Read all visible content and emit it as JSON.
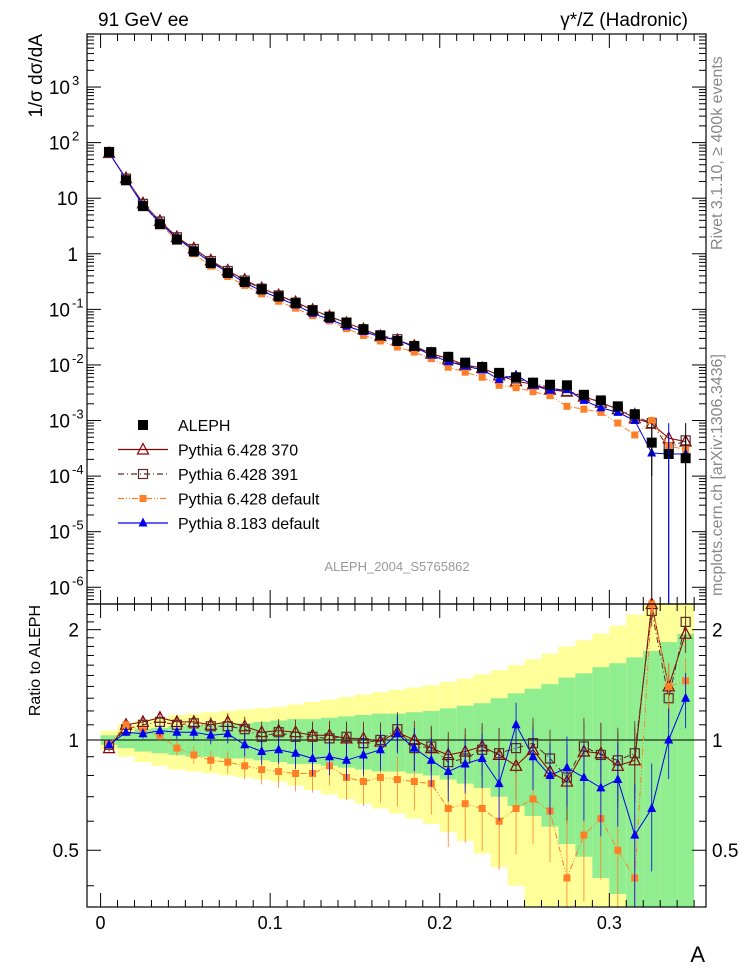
{
  "header": {
    "left": "91 GeV ee",
    "right": "γ*/Z (Hadronic)"
  },
  "side": {
    "rivet": "Rivet 3.1.10, ≥ 400k events",
    "mcplots": "mcplots.cern.ch [arXiv:1306.3436]"
  },
  "watermark": "ALEPH_2004_S5765862",
  "colors": {
    "data": "#000000",
    "p370": "#8b0000",
    "p391": "#5a2a2a",
    "pdef": "#ff7f27",
    "p8": "#0000ee",
    "band_inner": "#90ee90",
    "band_outer": "#ffff99"
  },
  "chart_data": [
    {
      "type": "scatter",
      "panel": "main",
      "ylabel": "1/σ dσ/dA",
      "yscale": "log",
      "ylim": [
        5e-07,
        9000
      ],
      "xlim": [
        -0.008,
        0.357
      ],
      "y_ticks": [
        "10^-6",
        "10^-5",
        "10^-4",
        "10^-3",
        "10^-2",
        "10^-1",
        "1",
        "10",
        "10^2",
        "10^3"
      ],
      "x": [
        0.005,
        0.015,
        0.025,
        0.035,
        0.045,
        0.055,
        0.065,
        0.075,
        0.085,
        0.095,
        0.105,
        0.115,
        0.125,
        0.135,
        0.145,
        0.155,
        0.165,
        0.175,
        0.185,
        0.195,
        0.205,
        0.215,
        0.225,
        0.235,
        0.245,
        0.255,
        0.265,
        0.275,
        0.285,
        0.295,
        0.305,
        0.315,
        0.325,
        0.335,
        0.345
      ],
      "data": [
        68,
        21,
        7.2,
        3.4,
        1.8,
        1.1,
        0.68,
        0.45,
        0.31,
        0.23,
        0.17,
        0.13,
        0.095,
        0.073,
        0.057,
        0.044,
        0.034,
        0.027,
        0.022,
        0.017,
        0.014,
        0.011,
        0.0092,
        0.0072,
        0.006,
        0.0048,
        0.0044,
        0.0043,
        0.0029,
        0.0023,
        0.0018,
        0.0013,
        0.0004,
        0.00025,
        0.00021
      ],
      "data_err_hi": [
        4,
        1,
        0.3,
        0.12,
        0.06,
        0.04,
        0.025,
        0.015,
        0.01,
        0.008,
        0.006,
        0.005,
        0.004,
        0.003,
        0.002,
        0.0018,
        0.0015,
        0.0012,
        0.001,
        0.0009,
        0.0008,
        0.0007,
        0.0006,
        0.0006,
        0.0006,
        0.0005,
        0.0005,
        0.0005,
        0.0004,
        0.0004,
        0.0004,
        0.0004,
        0.0003,
        0.0003,
        0.0003
      ],
      "series": [
        {
          "name": "ALEPH",
          "key": "data",
          "marker": "square-filled",
          "color": "#000000"
        },
        {
          "name": "Pythia 6.428 370",
          "key": "p370",
          "marker": "triangle-open",
          "color": "#8b0000",
          "dash": "solid",
          "values": [
            65,
            23,
            8.1,
            3.9,
            2.0,
            1.25,
            0.76,
            0.5,
            0.34,
            0.24,
            0.18,
            0.135,
            0.098,
            0.075,
            0.057,
            0.044,
            0.033,
            0.028,
            0.022,
            0.016,
            0.013,
            0.01,
            0.0088,
            0.0065,
            0.0051,
            0.0045,
            0.0036,
            0.0033,
            0.0027,
            0.0021,
            0.0016,
            0.0011,
            0.00088,
            0.00048,
            0.00042
          ]
        },
        {
          "name": "Pythia 6.428 391",
          "key": "p391",
          "marker": "square-open",
          "color": "#5a2a2a",
          "dash": "dashdot",
          "values": [
            66,
            22.5,
            7.9,
            3.8,
            1.98,
            1.22,
            0.74,
            0.49,
            0.33,
            0.235,
            0.178,
            0.132,
            0.097,
            0.074,
            0.058,
            0.043,
            0.034,
            0.029,
            0.021,
            0.016,
            0.012,
            0.0098,
            0.0087,
            0.0066,
            0.0057,
            0.0047,
            0.0039,
            0.0034,
            0.0028,
            0.0021,
            0.0016,
            0.0012,
            0.0009,
            0.00032,
            0.00044
          ]
        },
        {
          "name": "Pythia 6.428 default",
          "key": "pdef",
          "marker": "square-filled-small",
          "color": "#ff7f27",
          "dash": "dashdotdot",
          "values": [
            66,
            23,
            7.6,
            3.5,
            1.7,
            1.0,
            0.6,
            0.39,
            0.27,
            0.19,
            0.14,
            0.105,
            0.077,
            0.062,
            0.045,
            0.034,
            0.027,
            0.021,
            0.017,
            0.013,
            0.0091,
            0.0074,
            0.006,
            0.0043,
            0.0039,
            0.0033,
            0.0028,
            0.0018,
            0.0016,
            0.0014,
            0.0009,
            0.00055,
            0.001,
            0.00035,
            0.0003
          ]
        },
        {
          "name": "Pythia 8.183 default",
          "key": "p8",
          "marker": "triangle-filled",
          "color": "#0000ee",
          "dash": "solid",
          "values": [
            66,
            22,
            7.5,
            3.6,
            1.9,
            1.15,
            0.7,
            0.47,
            0.3,
            0.215,
            0.16,
            0.12,
            0.085,
            0.066,
            0.05,
            0.04,
            0.032,
            0.028,
            0.021,
            0.015,
            0.0115,
            0.0095,
            0.0082,
            0.0055,
            0.0066,
            0.0043,
            0.0035,
            0.0036,
            0.0023,
            0.0017,
            0.0014,
            0.001,
            0.00026,
            0.00025,
            0.00025
          ]
        }
      ],
      "legend": {
        "placement": "lower-left"
      }
    },
    {
      "type": "scatter",
      "panel": "ratio",
      "ylabel": "Ratio to ALEPH",
      "xlabel": "A",
      "ylim": [
        0.35,
        2.35
      ],
      "x_ticks": [
        "0",
        "0.1",
        "0.2",
        "0.3"
      ],
      "y_ticks": [
        "0.5",
        "1",
        "2"
      ],
      "x": [
        0.005,
        0.015,
        0.025,
        0.035,
        0.045,
        0.055,
        0.065,
        0.075,
        0.085,
        0.095,
        0.105,
        0.115,
        0.125,
        0.135,
        0.145,
        0.155,
        0.165,
        0.175,
        0.185,
        0.195,
        0.205,
        0.215,
        0.225,
        0.235,
        0.245,
        0.255,
        0.265,
        0.275,
        0.285,
        0.295,
        0.305,
        0.315,
        0.325,
        0.335,
        0.345
      ],
      "band_inner": [
        0.03,
        0.05,
        0.07,
        0.08,
        0.09,
        0.1,
        0.1,
        0.11,
        0.11,
        0.12,
        0.13,
        0.14,
        0.14,
        0.15,
        0.16,
        0.17,
        0.18,
        0.18,
        0.19,
        0.2,
        0.22,
        0.24,
        0.26,
        0.3,
        0.34,
        0.38,
        0.42,
        0.48,
        0.52,
        0.58,
        0.62,
        0.68,
        0.75,
        0.85,
        0.95
      ],
      "band_outer": [
        0.06,
        0.1,
        0.13,
        0.15,
        0.17,
        0.18,
        0.19,
        0.2,
        0.21,
        0.22,
        0.23,
        0.25,
        0.27,
        0.29,
        0.31,
        0.33,
        0.35,
        0.37,
        0.39,
        0.41,
        0.44,
        0.47,
        0.51,
        0.55,
        0.6,
        0.66,
        0.72,
        0.8,
        0.87,
        0.95,
        1.05,
        1.2,
        1.35,
        1.5,
        1.65
      ],
      "series": [
        {
          "name": "Pythia 6.428 370",
          "key": "p370",
          "marker": "triangle-open",
          "color": "#8b0000",
          "dash": "solid",
          "values": [
            0.95,
            1.1,
            1.12,
            1.15,
            1.12,
            1.12,
            1.1,
            1.12,
            1.09,
            1.05,
            1.06,
            1.05,
            1.03,
            1.03,
            1.01,
            1.01,
            0.99,
            1.05,
            1.0,
            0.95,
            0.91,
            0.93,
            0.96,
            0.91,
            0.85,
            0.94,
            0.82,
            0.77,
            0.93,
            0.92,
            0.85,
            0.88,
            2.35,
            1.4,
            1.95
          ]
        },
        {
          "name": "Pythia 6.428 391",
          "key": "p391",
          "marker": "square-open",
          "color": "#5a2a2a",
          "dash": "dashdot",
          "values": [
            0.97,
            1.07,
            1.1,
            1.12,
            1.1,
            1.11,
            1.09,
            1.09,
            1.07,
            1.02,
            1.05,
            1.02,
            1.02,
            1.01,
            1.02,
            0.98,
            1.0,
            1.07,
            0.95,
            0.96,
            0.87,
            0.89,
            0.94,
            0.92,
            0.95,
            0.98,
            0.89,
            0.79,
            0.96,
            0.91,
            0.88,
            0.92,
            2.25,
            1.3,
            2.1
          ]
        },
        {
          "name": "Pythia 6.428 default",
          "key": "pdef",
          "marker": "square-filled-small",
          "color": "#ff7f27",
          "dash": "dashdotdot",
          "values": [
            0.97,
            1.1,
            1.06,
            1.03,
            0.95,
            0.91,
            0.88,
            0.87,
            0.85,
            0.83,
            0.82,
            0.81,
            0.81,
            0.85,
            0.79,
            0.77,
            0.79,
            0.78,
            0.77,
            0.76,
            0.65,
            0.67,
            0.65,
            0.6,
            0.65,
            0.69,
            0.64,
            0.42,
            0.55,
            0.61,
            0.5,
            0.42,
            2.4,
            1.4,
            1.45
          ]
        },
        {
          "name": "Pythia 8.183 default",
          "key": "p8",
          "marker": "triangle-filled",
          "color": "#0000ee",
          "dash": "solid",
          "values": [
            0.97,
            1.05,
            1.04,
            1.06,
            1.05,
            1.05,
            1.03,
            1.04,
            0.97,
            0.93,
            0.94,
            0.92,
            0.89,
            0.9,
            0.88,
            0.91,
            0.94,
            1.04,
            0.95,
            0.88,
            0.82,
            0.86,
            0.89,
            0.76,
            1.1,
            0.9,
            0.8,
            0.84,
            0.79,
            0.74,
            0.78,
            0.55,
            0.65,
            1.0,
            1.3
          ]
        }
      ]
    }
  ]
}
